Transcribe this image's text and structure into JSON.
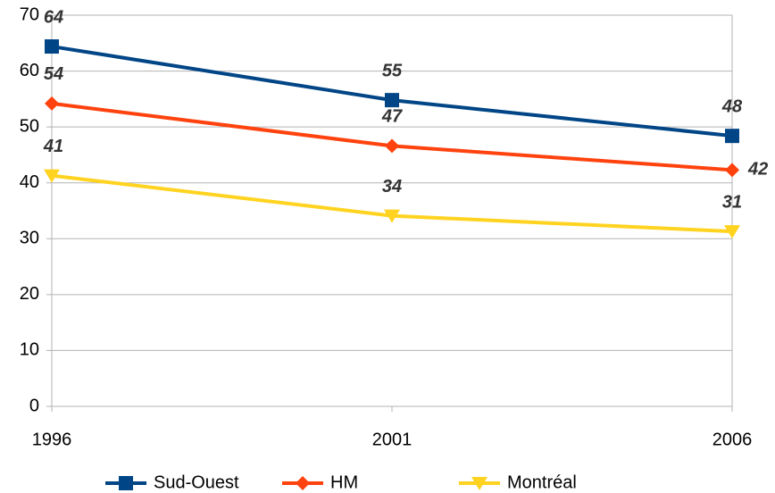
{
  "chart_data": {
    "type": "line",
    "categories": [
      "1996",
      "2001",
      "2006"
    ],
    "series": [
      {
        "name": "Sud-Ouest",
        "color": "#004586",
        "marker": "square",
        "values": [
          64.4,
          54.8,
          48.4
        ],
        "value_labels": [
          "64",
          "55",
          "48"
        ]
      },
      {
        "name": "HM",
        "color": "#ff420e",
        "marker": "diamond",
        "values": [
          54.2,
          46.6,
          42.3
        ],
        "value_labels": [
          "54",
          "47",
          "42"
        ]
      },
      {
        "name": "Montréal",
        "color": "#ffd320",
        "marker": "triangle-down",
        "values": [
          41.3,
          34.1,
          31.3
        ],
        "value_labels": [
          "41",
          "34",
          "31"
        ]
      }
    ],
    "ylim": [
      0,
      70
    ],
    "yticks": [
      0,
      10,
      20,
      30,
      40,
      50,
      60,
      70
    ],
    "grid": true,
    "legend": "bottom"
  }
}
